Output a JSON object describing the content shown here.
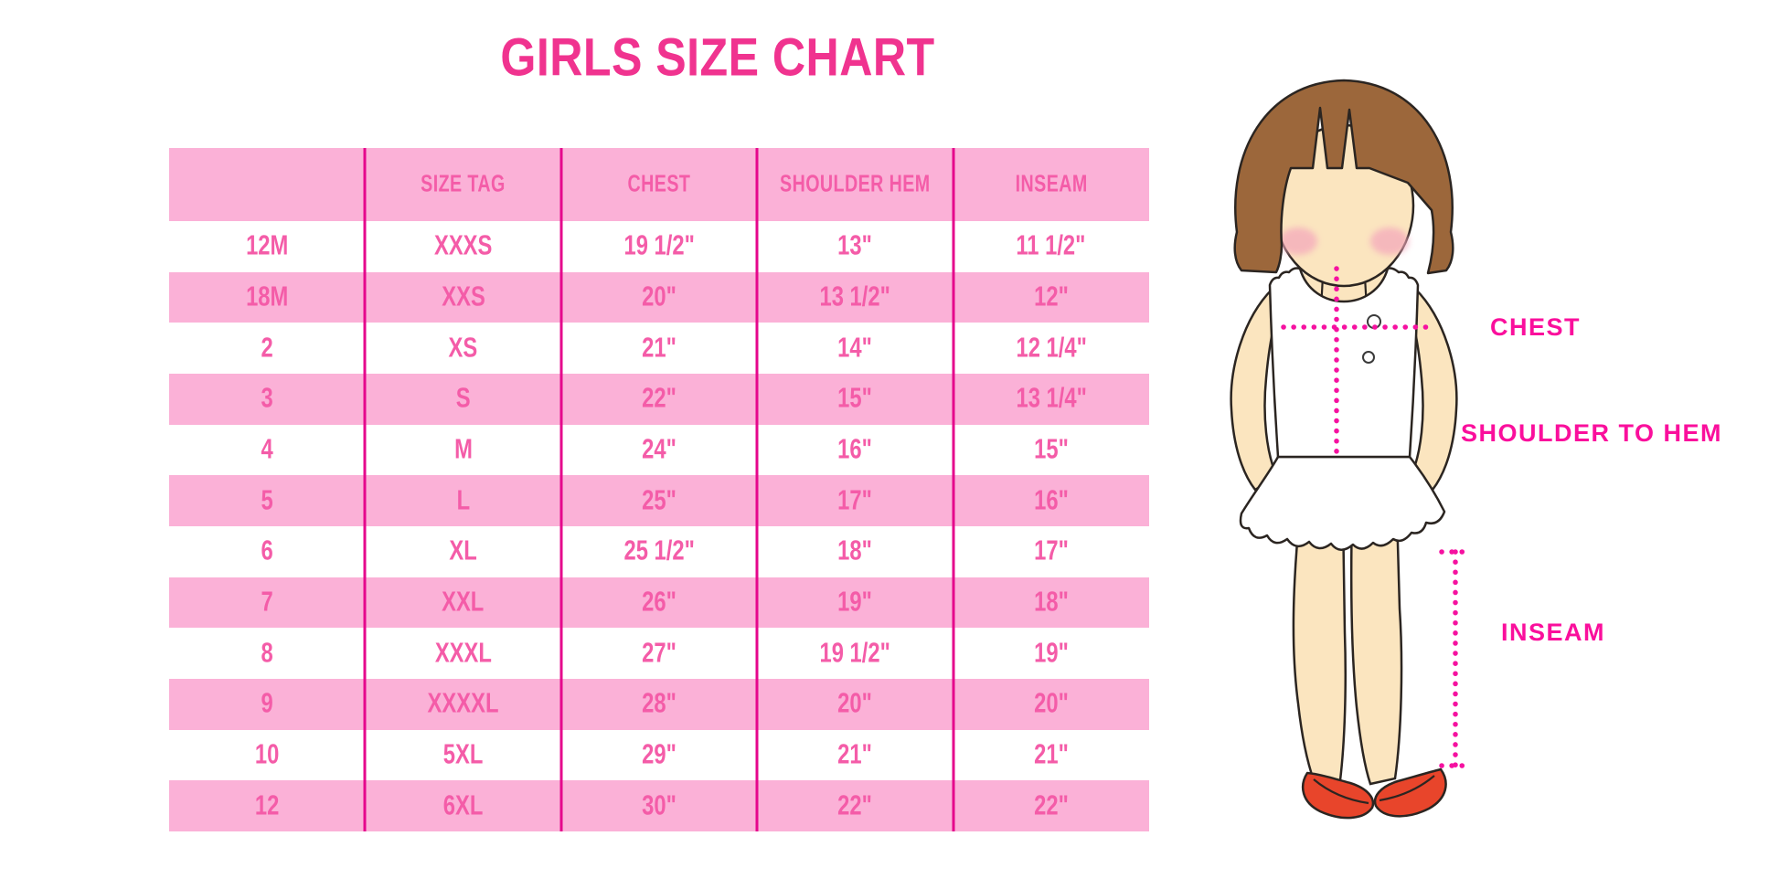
{
  "page": {
    "title": "GIRLS SIZE CHART"
  },
  "table": {
    "headers": [
      "",
      "SIZE TAG",
      "CHEST",
      "SHOULDER HEM",
      "INSEAM"
    ],
    "rows": [
      [
        "12M",
        "XXXS",
        "19 1/2\"",
        "13\"",
        "11 1/2\""
      ],
      [
        "18M",
        "XXS",
        "20\"",
        "13 1/2\"",
        "12\""
      ],
      [
        "2",
        "XS",
        "21\"",
        "14\"",
        "12 1/4\""
      ],
      [
        "3",
        "S",
        "22\"",
        "15\"",
        "13 1/4\""
      ],
      [
        "4",
        "M",
        "24\"",
        "16\"",
        "15\""
      ],
      [
        "5",
        "L",
        "25\"",
        "17\"",
        "16\""
      ],
      [
        "6",
        "XL",
        "25 1/2\"",
        "18\"",
        "17\""
      ],
      [
        "7",
        "XXL",
        "26\"",
        "19\"",
        "18\""
      ],
      [
        "8",
        "XXXL",
        "27\"",
        "19 1/2\"",
        "19\""
      ],
      [
        "9",
        "XXXXL",
        "28\"",
        "20\"",
        "20\""
      ],
      [
        "10",
        "5XL",
        "29\"",
        "21\"",
        "21\""
      ],
      [
        "12",
        "6XL",
        "30\"",
        "22\"",
        "22\""
      ]
    ]
  },
  "figure": {
    "chest_label": "CHEST",
    "shoulder_to_hem_label": "SHOULDER TO HEM",
    "inseam_label": "INSEAM"
  },
  "colors": {
    "title_pink": "#F0338F",
    "label_magenta": "#FA0F9C",
    "cell_pink": "#F45CA8",
    "row_pink": "#FBB1D7",
    "divider_pink": "#E5078C",
    "dot_magenta": "#F511A0",
    "hair_brown": "#9C673B",
    "skin": "#FBE5BF",
    "blush": "#F4A9BC",
    "shoe_red": "#E8452B",
    "outline": "#2B2521"
  },
  "chart_data": {
    "type": "table",
    "title": "GIRLS SIZE CHART",
    "columns": [
      "",
      "SIZE TAG",
      "CHEST",
      "SHOULDER HEM",
      "INSEAM"
    ],
    "rows": [
      [
        "12M",
        "XXXS",
        "19 1/2\"",
        "13\"",
        "11 1/2\""
      ],
      [
        "18M",
        "XXS",
        "20\"",
        "13 1/2\"",
        "12\""
      ],
      [
        "2",
        "XS",
        "21\"",
        "14\"",
        "12 1/4\""
      ],
      [
        "3",
        "S",
        "22\"",
        "15\"",
        "13 1/4\""
      ],
      [
        "4",
        "M",
        "24\"",
        "16\"",
        "15\""
      ],
      [
        "5",
        "L",
        "25\"",
        "17\"",
        "16\""
      ],
      [
        "6",
        "XL",
        "25 1/2\"",
        "18\"",
        "17\""
      ],
      [
        "7",
        "XXL",
        "26\"",
        "19\"",
        "18\""
      ],
      [
        "8",
        "XXXL",
        "27\"",
        "19 1/2\"",
        "19\""
      ],
      [
        "9",
        "XXXXL",
        "28\"",
        "20\"",
        "20\""
      ],
      [
        "10",
        "5XL",
        "29\"",
        "21\"",
        "21\""
      ],
      [
        "12",
        "6XL",
        "30\"",
        "22\"",
        "22\""
      ]
    ],
    "annotations": [
      "CHEST",
      "SHOULDER TO HEM",
      "INSEAM"
    ]
  }
}
